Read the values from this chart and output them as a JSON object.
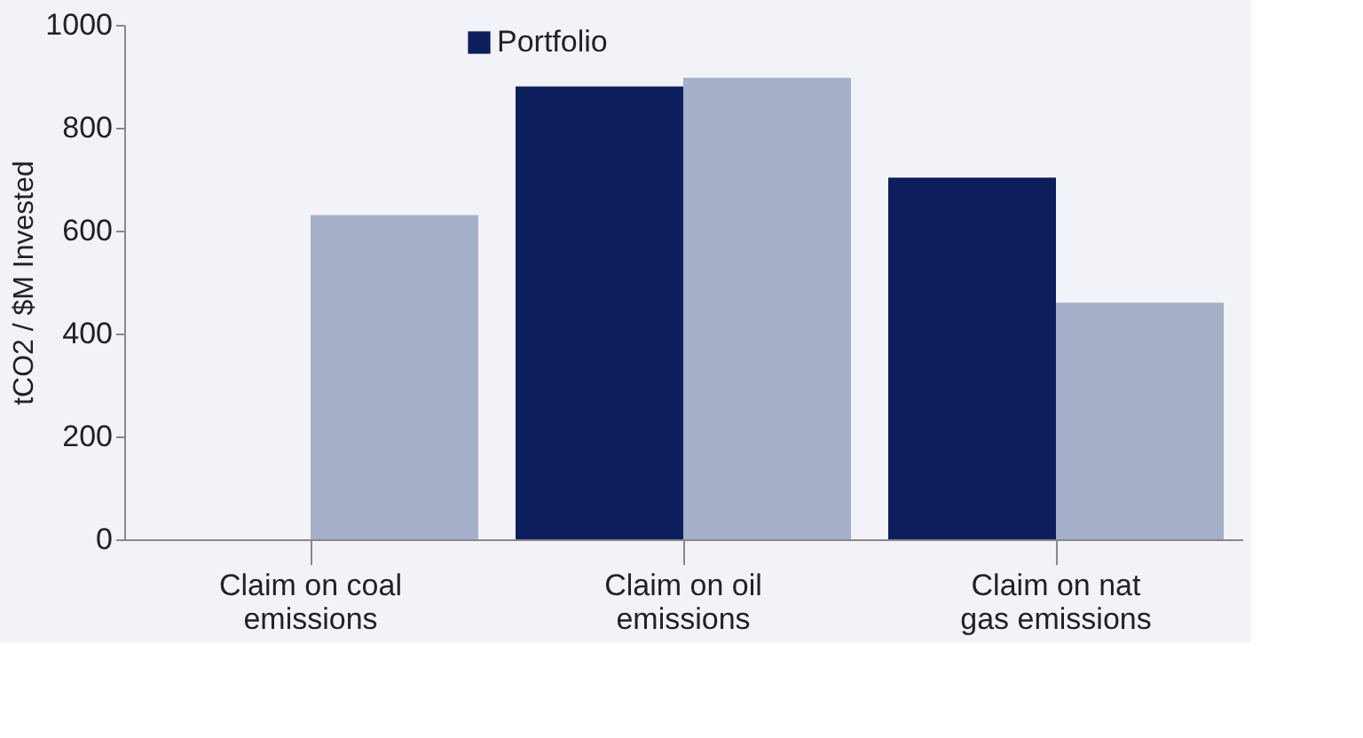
{
  "chart_data": {
    "type": "bar",
    "ylabel": "tCO2 / $M Invested",
    "categories": [
      "Claim on coal emissions",
      "Claim on oil emissions",
      "Claim on nat gas emissions"
    ],
    "series": [
      {
        "name": "Portfolio",
        "color": "#0c1f5c",
        "values": [
          0,
          880,
          703
        ]
      },
      {
        "color": "#a5afc8",
        "values": [
          630,
          897,
          460
        ]
      }
    ],
    "ylim": [
      0,
      1000
    ],
    "yticks": [
      0,
      200,
      400,
      600,
      800,
      1000
    ],
    "grid": false,
    "legend": "top"
  }
}
